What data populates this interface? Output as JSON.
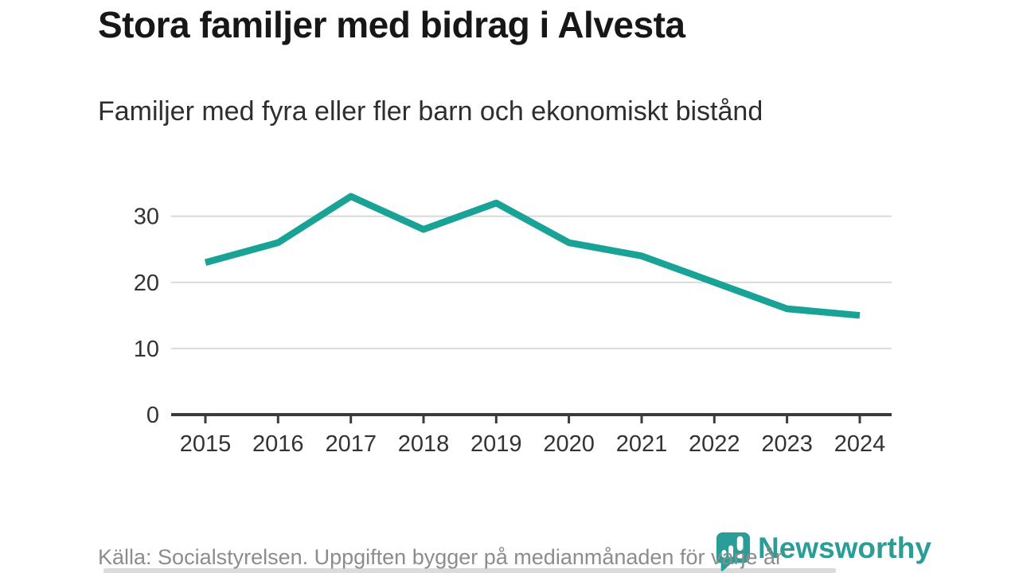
{
  "header": {
    "title": "Stora familjer med bidrag i Alvesta",
    "subtitle": "Familjer med fyra eller fler barn och ekonomiskt bistånd"
  },
  "chart_data": {
    "type": "line",
    "title": "Stora familjer med bidrag i Alvesta",
    "subtitle": "Familjer med fyra eller fler barn och ekonomiskt bistånd",
    "categories": [
      "2015",
      "2016",
      "2017",
      "2018",
      "2019",
      "2020",
      "2021",
      "2022",
      "2023",
      "2024"
    ],
    "values": [
      23,
      26,
      33,
      28,
      32,
      26,
      24,
      20,
      16,
      15
    ],
    "xlabel": "",
    "ylabel": "",
    "ylim": [
      0,
      35
    ],
    "yticks": [
      0,
      10,
      20,
      30
    ],
    "grid": true,
    "legend_position": "none",
    "line_color": "#18a396",
    "gridline_color": "#d9d9d9",
    "axis_color": "#3b3b3b",
    "tick_label_color": "#333333"
  },
  "footer": {
    "source": "Källa: Socialstyrelsen. Uppgiften bygger på medianmånaden för varje år",
    "brand": "Newsworthy",
    "brand_color": "#2a9d98"
  }
}
